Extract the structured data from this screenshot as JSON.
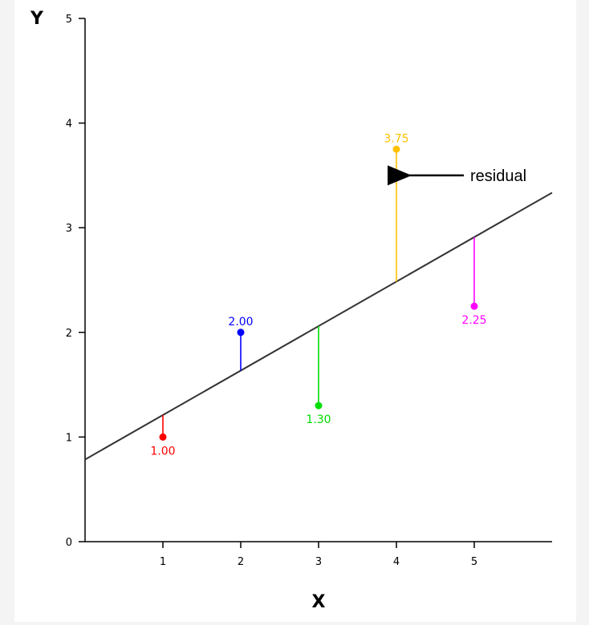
{
  "chart_data": {
    "type": "scatter",
    "title": "",
    "xlabel": "X",
    "ylabel": "Y",
    "xlim": [
      0,
      6
    ],
    "ylim": [
      0,
      5
    ],
    "xticks": [
      "1",
      "2",
      "3",
      "4",
      "5"
    ],
    "yticks": [
      "0",
      "1",
      "2",
      "3",
      "4",
      "5"
    ],
    "grid": false,
    "points": [
      {
        "x": 1,
        "y": 1.0,
        "label": "1.00",
        "color": "#ff0000"
      },
      {
        "x": 2,
        "y": 2.0,
        "label": "2.00",
        "color": "#0000ff"
      },
      {
        "x": 3,
        "y": 1.3,
        "label": "1.30",
        "color": "#00dd00"
      },
      {
        "x": 4,
        "y": 3.75,
        "label": "3.75",
        "color": "#ffc000"
      },
      {
        "x": 5,
        "y": 2.25,
        "label": "2.25",
        "color": "#ff00ff"
      }
    ],
    "regression_line": {
      "intercept": 0.785,
      "slope": 0.425,
      "color": "#333333"
    },
    "annotation": {
      "text": "residual",
      "points_to_x": 4,
      "points_to_y": 3.5
    }
  }
}
